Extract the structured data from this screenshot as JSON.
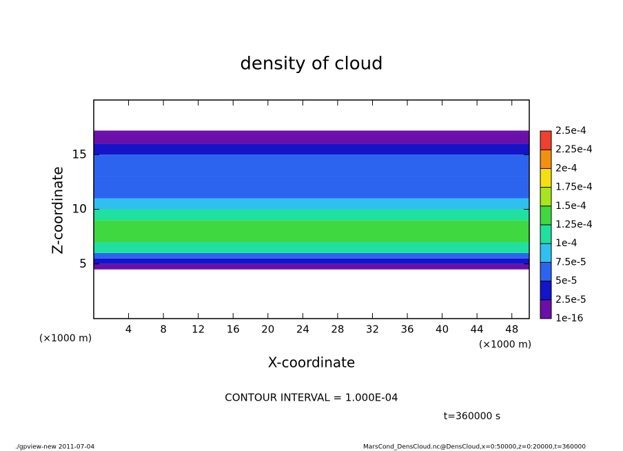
{
  "chart_data": {
    "type": "contour",
    "title": "density of cloud",
    "x_label": "X-coordinate",
    "y_label": "Z-coordinate",
    "x_unit": "(×1000 m)",
    "y_unit": "(×1000 m)",
    "xlim": [
      0,
      50
    ],
    "xticks": [
      4,
      8,
      12,
      16,
      20,
      24,
      28,
      32,
      36,
      40,
      44,
      48
    ],
    "ylim": [
      0,
      20
    ],
    "yticks": [
      5,
      10,
      15
    ],
    "z_edges": [
      4.5,
      5,
      5.5,
      6,
      7,
      9,
      10,
      11,
      13,
      15,
      16,
      17,
      17.2
    ],
    "values": [
      1e-05,
      4e-05,
      7e-05,
      0.000105,
      0.00013,
      0.00011,
      8e-05,
      6e-05,
      5e-05,
      4e-05,
      2e-05,
      1e-05
    ],
    "levels": [
      {
        "value": 1e-16,
        "label": "1e-16"
      },
      {
        "value": 2.5e-05,
        "label": "2.5e-5"
      },
      {
        "value": 5e-05,
        "label": "5e-5"
      },
      {
        "value": 7.5e-05,
        "label": "7.5e-5"
      },
      {
        "value": 0.0001,
        "label": "1e-4"
      },
      {
        "value": 0.000125,
        "label": "1.25e-4"
      },
      {
        "value": 0.00015,
        "label": "1.5e-4"
      },
      {
        "value": 0.000175,
        "label": "1.75e-4"
      },
      {
        "value": 0.0002,
        "label": "2e-4"
      },
      {
        "value": 0.000225,
        "label": "2.25e-4"
      },
      {
        "value": 0.00025,
        "label": "2.5e-4"
      }
    ],
    "colors": [
      "#6a10a8",
      "#1414c8",
      "#2c64f0",
      "#30c0f0",
      "#20e0a0",
      "#40d840",
      "#a8e420",
      "#f4e010",
      "#f49010",
      "#f04030"
    ],
    "contour_note": "CONTOUR INTERVAL = 1.000E-04",
    "time_note": "t=360000 s",
    "footer_left": "./gpview-new  2011-07-04",
    "footer_right": "MarsCond_DensCloud.nc@DensCloud,x=0:50000,z=0:20000,t=360000"
  }
}
